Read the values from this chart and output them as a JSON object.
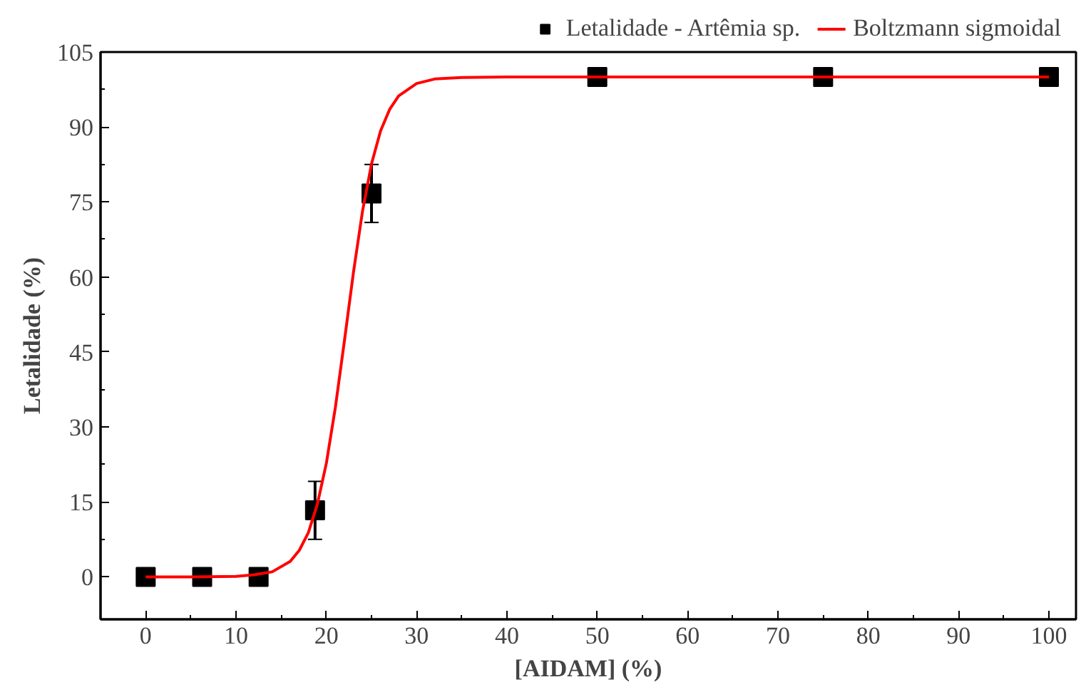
{
  "chart_data": {
    "type": "scatter",
    "xlabel": "[AIDAM] (%)",
    "ylabel": "Letalidade (%)",
    "xlim": [
      -5,
      103
    ],
    "ylim": [
      -8.5,
      105
    ],
    "xticks": [
      0,
      10,
      20,
      30,
      40,
      50,
      60,
      70,
      80,
      90,
      100
    ],
    "yticks": [
      0,
      15,
      30,
      45,
      60,
      75,
      90,
      105
    ],
    "grid": false,
    "legend": "top right",
    "series": [
      {
        "name": "Letalidade - Artêmia sp.",
        "color": "#000000",
        "marker": "square",
        "x": [
          0,
          6.25,
          12.5,
          18.75,
          25,
          50,
          75,
          100
        ],
        "values": [
          0,
          0,
          0,
          13.3,
          76.7,
          100,
          100,
          100
        ],
        "errors": [
          null,
          null,
          null,
          5.8,
          5.8,
          null,
          null,
          null
        ]
      },
      {
        "name": "Boltzmann sigmoidal",
        "type": "line",
        "color": "#ff0000",
        "line_style": "solid",
        "x": [
          0,
          5,
          10,
          12,
          14,
          16,
          17,
          18,
          19,
          20,
          21,
          22,
          23,
          24,
          25,
          26,
          27,
          28,
          30,
          32,
          35,
          40,
          60,
          100
        ],
        "values": [
          0,
          0,
          0.1,
          0.4,
          1.0,
          3.1,
          5.3,
          8.8,
          14.5,
          22.7,
          33.9,
          47.2,
          60.9,
          73.1,
          82.6,
          89.2,
          93.5,
          96.2,
          98.7,
          99.6,
          99.9,
          100,
          100,
          100
        ]
      }
    ]
  }
}
